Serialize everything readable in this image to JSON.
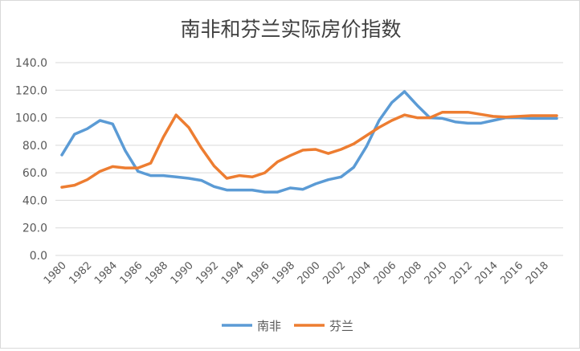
{
  "chart_data": {
    "type": "line",
    "title": "南非和芬兰实际房价指数",
    "xlabel": "",
    "ylabel": "",
    "x": [
      1980,
      1981,
      1982,
      1983,
      1984,
      1985,
      1986,
      1987,
      1988,
      1989,
      1990,
      1991,
      1992,
      1993,
      1994,
      1995,
      1996,
      1997,
      1998,
      1999,
      2000,
      2001,
      2002,
      2003,
      2004,
      2005,
      2006,
      2007,
      2008,
      2009,
      2010,
      2011,
      2012,
      2013,
      2014,
      2015,
      2016,
      2017,
      2018,
      2019
    ],
    "x_tick_labels": [
      "1980",
      "1982",
      "1984",
      "1986",
      "1988",
      "1990",
      "1992",
      "1994",
      "1996",
      "1998",
      "2000",
      "2002",
      "2004",
      "2006",
      "2008",
      "2010",
      "2012",
      "2014",
      "2016",
      "2018"
    ],
    "y_tick_labels": [
      "0.0",
      "20.0",
      "40.0",
      "60.0",
      "80.0",
      "100.0",
      "120.0",
      "140.0"
    ],
    "ylim": [
      0,
      140
    ],
    "grid": true,
    "legend_position": "bottom",
    "series": [
      {
        "name": "南非",
        "color": "#5b9bd5",
        "values": [
          73,
          88,
          92,
          98,
          95.5,
          76,
          61,
          58,
          58,
          57,
          56,
          54.5,
          50,
          47.5,
          47.5,
          47.5,
          46,
          46,
          49,
          48,
          52,
          55,
          57,
          64,
          79,
          98,
          111,
          119,
          109,
          100,
          99.5,
          97,
          96,
          96,
          98,
          100,
          100,
          99.5,
          99.5,
          99.5
        ]
      },
      {
        "name": "芬兰",
        "color": "#ed7d31",
        "values": [
          49.5,
          51,
          55,
          61,
          64.5,
          63.5,
          63.5,
          67,
          86,
          102,
          93,
          78,
          65,
          56,
          58,
          57,
          60,
          68,
          72.5,
          76.5,
          77,
          74,
          77,
          81,
          87,
          93,
          98,
          102,
          100,
          100,
          104,
          104,
          104,
          102.5,
          101,
          100.5,
          101,
          101.5,
          101.5,
          101.5
        ]
      }
    ]
  }
}
